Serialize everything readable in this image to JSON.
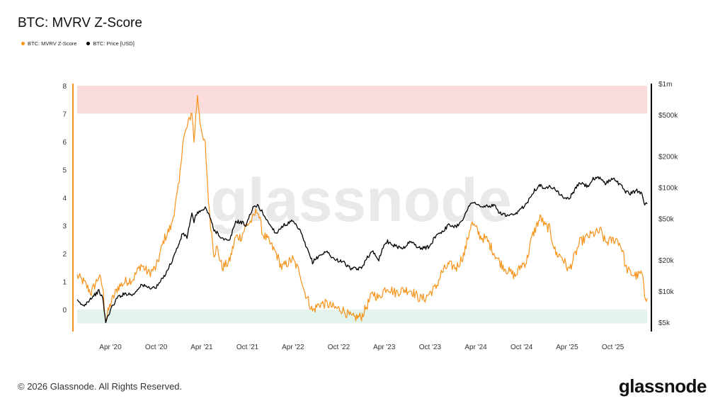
{
  "title": "BTC: MVRV Z-Score",
  "legend": {
    "zscore_label": "BTC: MVRV Z-Score",
    "price_label": "BTC: Price [USD]"
  },
  "watermark": "glassnode",
  "footer": {
    "copyright": "© 2026 Glassnode. All Rights Reserved.",
    "logo": "glassnode"
  },
  "colors": {
    "zscore": "#f7931a",
    "price": "#000000",
    "red_band": "#fbdcdc",
    "green_band": "#e3f4ec"
  },
  "chart_data": {
    "type": "line",
    "title": "BTC: MVRV Z-Score",
    "x_ticks": [
      "Apr '20",
      "Oct '20",
      "Apr '21",
      "Oct '21",
      "Apr '22",
      "Oct '22",
      "Apr '23",
      "Oct '23",
      "Apr '24",
      "Oct '24",
      "Apr '25",
      "Oct '25"
    ],
    "y_left_ticks": [
      "8",
      "7",
      "6",
      "5",
      "4",
      "3",
      "2",
      "1",
      "0"
    ],
    "y_right_ticks": [
      "$1m",
      "$500k",
      "$200k",
      "$100k",
      "$50k",
      "$20k",
      "$10k",
      "$5k"
    ],
    "y_left_range": [
      -0.5,
      8
    ],
    "y_right_range": [
      5000,
      1000000
    ],
    "y_right_scale": "log",
    "bands": [
      {
        "from": 7,
        "to": 8,
        "color": "red"
      },
      {
        "from": -0.5,
        "to": 0,
        "color": "green"
      }
    ],
    "legend_position": "top-left",
    "grid": false,
    "series": [
      {
        "name": "BTC: MVRV Z-Score",
        "axis": "left",
        "x": [
          "2019-11-20",
          "2019-12-15",
          "2020-01-15",
          "2020-02-15",
          "2020-03-01",
          "2020-03-13",
          "2020-04-01",
          "2020-05-01",
          "2020-06-01",
          "2020-07-01",
          "2020-08-01",
          "2020-09-01",
          "2020-10-01",
          "2020-11-01",
          "2020-12-01",
          "2021-01-01",
          "2021-01-15",
          "2021-02-01",
          "2021-02-21",
          "2021-03-01",
          "2021-03-15",
          "2021-04-01",
          "2021-04-15",
          "2021-05-01",
          "2021-05-20",
          "2021-06-01",
          "2021-06-22",
          "2021-07-20",
          "2021-08-15",
          "2021-09-07",
          "2021-09-25",
          "2021-10-20",
          "2021-11-10",
          "2021-12-01",
          "2021-12-20",
          "2022-01-24",
          "2022-02-15",
          "2022-03-30",
          "2022-04-30",
          "2022-05-15",
          "2022-06-18",
          "2022-07-15",
          "2022-08-15",
          "2022-09-15",
          "2022-10-15",
          "2022-11-09",
          "2022-11-25",
          "2022-12-31",
          "2023-01-20",
          "2023-02-15",
          "2023-03-10",
          "2023-03-31",
          "2023-04-14",
          "2023-05-15",
          "2023-06-15",
          "2023-07-15",
          "2023-08-20",
          "2023-09-11",
          "2023-10-01",
          "2023-10-25",
          "2023-11-15",
          "2023-12-15",
          "2024-01-15",
          "2024-02-15",
          "2024-03-14",
          "2024-04-01",
          "2024-04-20",
          "2024-05-15",
          "2024-06-15",
          "2024-07-05",
          "2024-08-05",
          "2024-09-06",
          "2024-10-01",
          "2024-10-20",
          "2024-11-12",
          "2024-12-05",
          "2024-12-17",
          "2025-01-01",
          "2025-01-20",
          "2025-02-15",
          "2025-03-10",
          "2025-04-08",
          "2025-05-01",
          "2025-05-22",
          "2025-06-22",
          "2025-07-14",
          "2025-08-14",
          "2025-09-01",
          "2025-10-06",
          "2025-10-20",
          "2025-11-10",
          "2025-11-21",
          "2025-12-10",
          "2026-01-05",
          "2026-01-25",
          "2026-02-05",
          "2026-02-15"
        ],
        "y": [
          1.2,
          1.0,
          0.6,
          1.2,
          0.8,
          -0.4,
          0.2,
          0.8,
          1.0,
          1.1,
          1.6,
          1.3,
          1.5,
          2.5,
          3.0,
          4.5,
          6.0,
          6.5,
          7.1,
          6.0,
          7.7,
          6.2,
          5.9,
          3.5,
          2.0,
          2.2,
          1.5,
          1.7,
          2.6,
          2.6,
          3.0,
          3.2,
          3.6,
          2.7,
          2.5,
          2.0,
          1.5,
          1.8,
          1.3,
          0.7,
          -0.05,
          0.2,
          0.2,
          0.05,
          0.0,
          -0.2,
          -0.3,
          -0.25,
          0.1,
          0.6,
          0.4,
          0.7,
          0.8,
          0.6,
          0.7,
          0.7,
          0.4,
          0.4,
          0.6,
          0.8,
          1.3,
          1.6,
          1.5,
          2.0,
          3.1,
          2.9,
          2.6,
          2.5,
          2.0,
          1.7,
          1.4,
          1.2,
          1.6,
          1.7,
          2.6,
          3.1,
          3.3,
          3.0,
          2.9,
          2.0,
          1.9,
          1.4,
          1.9,
          2.4,
          2.6,
          2.7,
          2.8,
          2.4,
          2.5,
          2.5,
          2.1,
          1.5,
          1.3,
          1.2,
          1.3,
          0.5,
          0.4
        ]
      },
      {
        "name": "BTC: Price [USD]",
        "axis": "right",
        "x": [
          "2019-11-20",
          "2019-12-15",
          "2020-01-15",
          "2020-02-15",
          "2020-03-01",
          "2020-03-13",
          "2020-04-01",
          "2020-05-01",
          "2020-06-01",
          "2020-07-01",
          "2020-08-01",
          "2020-09-01",
          "2020-10-01",
          "2020-11-01",
          "2020-12-01",
          "2021-01-01",
          "2021-01-15",
          "2021-02-01",
          "2021-02-21",
          "2021-03-01",
          "2021-03-15",
          "2021-04-01",
          "2021-04-15",
          "2021-05-01",
          "2021-05-20",
          "2021-06-01",
          "2021-06-22",
          "2021-07-20",
          "2021-08-15",
          "2021-09-07",
          "2021-09-25",
          "2021-10-20",
          "2021-11-10",
          "2021-12-01",
          "2021-12-20",
          "2022-01-24",
          "2022-02-15",
          "2022-03-30",
          "2022-04-30",
          "2022-05-15",
          "2022-06-18",
          "2022-07-15",
          "2022-08-15",
          "2022-09-15",
          "2022-10-15",
          "2022-11-09",
          "2022-11-25",
          "2022-12-31",
          "2023-01-20",
          "2023-02-15",
          "2023-03-10",
          "2023-03-31",
          "2023-04-14",
          "2023-05-15",
          "2023-06-15",
          "2023-07-15",
          "2023-08-20",
          "2023-09-11",
          "2023-10-01",
          "2023-10-25",
          "2023-11-15",
          "2023-12-15",
          "2024-01-15",
          "2024-02-15",
          "2024-03-14",
          "2024-04-01",
          "2024-04-20",
          "2024-05-15",
          "2024-06-15",
          "2024-07-05",
          "2024-08-05",
          "2024-09-06",
          "2024-10-01",
          "2024-10-20",
          "2024-11-12",
          "2024-12-05",
          "2024-12-17",
          "2025-01-01",
          "2025-01-20",
          "2025-02-15",
          "2025-03-10",
          "2025-04-08",
          "2025-05-01",
          "2025-05-22",
          "2025-06-22",
          "2025-07-14",
          "2025-08-14",
          "2025-09-01",
          "2025-10-06",
          "2025-10-20",
          "2025-11-10",
          "2025-11-21",
          "2025-12-10",
          "2026-01-05",
          "2026-01-25",
          "2026-02-05",
          "2026-02-15"
        ],
        "y": [
          8000,
          7200,
          8600,
          10000,
          8600,
          5000,
          6600,
          8800,
          9500,
          9200,
          11500,
          10800,
          10800,
          13800,
          19000,
          29000,
          36000,
          33000,
          55000,
          47000,
          58000,
          59000,
          63000,
          55000,
          38000,
          37000,
          32000,
          30000,
          47000,
          46000,
          43000,
          62000,
          67000,
          57000,
          47000,
          36000,
          42000,
          47000,
          38000,
          30000,
          19000,
          22000,
          24000,
          20000,
          19500,
          17000,
          16300,
          16500,
          21000,
          24000,
          20300,
          28000,
          30000,
          27000,
          26000,
          30000,
          26000,
          26000,
          27000,
          35000,
          37000,
          43000,
          42000,
          52000,
          73000,
          70000,
          64000,
          66000,
          66000,
          57000,
          53000,
          54000,
          63000,
          69000,
          88000,
          101000,
          106000,
          94000,
          105000,
          96000,
          82000,
          77000,
          94000,
          111000,
          102000,
          120000,
          122000,
          109000,
          124000,
          111000,
          100000,
          91000,
          87000,
          93000,
          88000,
          70000,
          69000
        ]
      }
    ]
  }
}
